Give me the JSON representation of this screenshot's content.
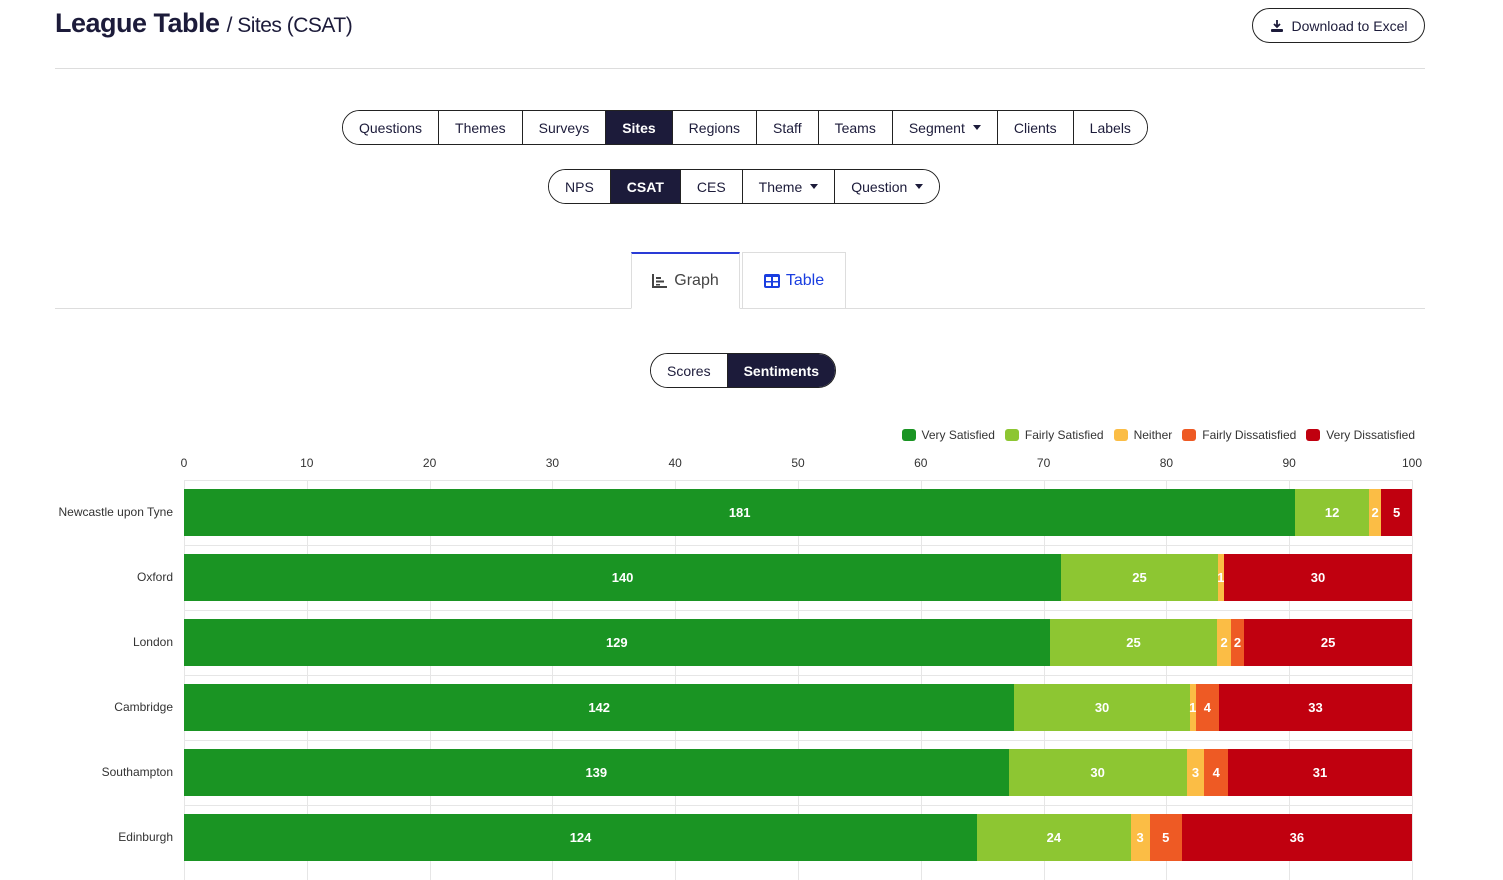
{
  "header": {
    "title": "League Table",
    "subtitle": "/ Sites (CSAT)",
    "download_label": "Download to Excel"
  },
  "dimension_tabs": [
    {
      "label": "Questions"
    },
    {
      "label": "Themes"
    },
    {
      "label": "Surveys"
    },
    {
      "label": "Sites",
      "active": true
    },
    {
      "label": "Regions"
    },
    {
      "label": "Staff"
    },
    {
      "label": "Teams"
    },
    {
      "label": "Segment",
      "dropdown": true
    },
    {
      "label": "Clients"
    },
    {
      "label": "Labels"
    }
  ],
  "metric_tabs": [
    {
      "label": "NPS"
    },
    {
      "label": "CSAT",
      "active": true
    },
    {
      "label": "CES"
    },
    {
      "label": "Theme",
      "dropdown": true
    },
    {
      "label": "Question",
      "dropdown": true
    }
  ],
  "view_tabs": [
    {
      "label": "Graph",
      "icon": "chart-bar-icon",
      "active": true
    },
    {
      "label": "Table",
      "icon": "table-icon"
    }
  ],
  "mode_toggle": [
    {
      "label": "Scores"
    },
    {
      "label": "Sentiments",
      "active": true
    }
  ],
  "chart_data": {
    "type": "bar",
    "orientation": "horizontal",
    "stacked": "percent",
    "xlim": [
      0,
      100
    ],
    "xticks": [
      0,
      10,
      20,
      30,
      40,
      50,
      60,
      70,
      80,
      90,
      100
    ],
    "grid": true,
    "legend_position": "top-right",
    "categories": [
      "Newcastle upon Tyne",
      "Oxford",
      "London",
      "Cambridge",
      "Southampton",
      "Edinburgh"
    ],
    "series": [
      {
        "name": "Very Satisfied",
        "color": "#1a9423",
        "values": [
          181,
          140,
          129,
          142,
          139,
          124
        ]
      },
      {
        "name": "Fairly Satisfied",
        "color": "#8dc632",
        "values": [
          12,
          25,
          25,
          30,
          30,
          24
        ]
      },
      {
        "name": "Neither",
        "color": "#fbbd45",
        "values": [
          2,
          1,
          2,
          1,
          3,
          3
        ]
      },
      {
        "name": "Fairly Dissatisfied",
        "color": "#ee5a24",
        "values": [
          0,
          0,
          2,
          4,
          4,
          5
        ]
      },
      {
        "name": "Very Dissatisfied",
        "color": "#c0000f",
        "values": [
          5,
          30,
          25,
          33,
          31,
          36
        ]
      }
    ]
  }
}
